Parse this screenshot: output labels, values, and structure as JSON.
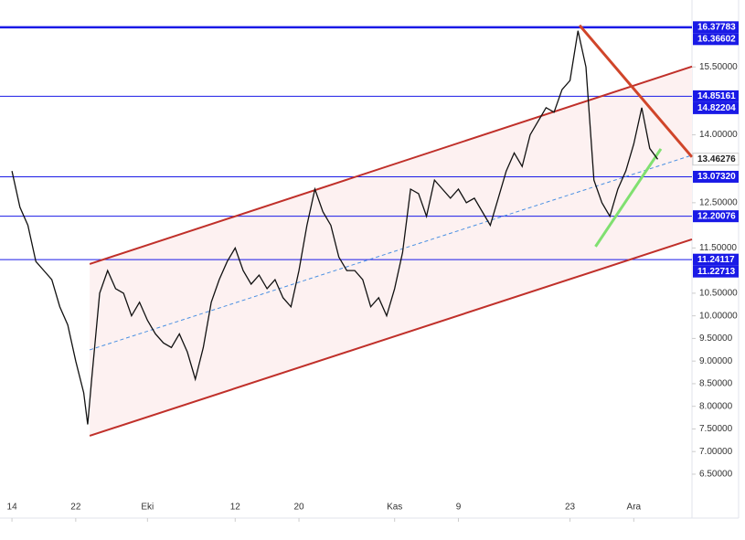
{
  "chart_data": {
    "type": "line",
    "x": [
      0,
      1,
      2,
      3,
      4,
      5,
      6,
      7,
      8,
      9,
      9.5,
      10,
      11,
      12,
      13,
      14,
      15,
      16,
      17,
      18,
      19,
      20,
      21,
      22,
      23,
      24,
      25,
      26,
      27,
      28,
      29,
      30,
      31,
      32,
      33,
      34,
      35,
      36,
      37,
      38,
      39,
      40,
      41,
      42,
      43,
      44,
      45,
      46,
      47,
      48,
      49,
      50,
      51,
      52,
      53,
      54,
      55,
      56,
      57,
      58,
      59,
      60,
      61,
      62,
      63,
      64,
      65,
      66,
      67,
      68,
      69,
      70,
      71,
      72,
      73,
      74,
      75,
      76,
      77,
      78,
      79,
      80,
      81
    ],
    "values": [
      13.2,
      12.4,
      12.0,
      11.2,
      11.0,
      10.8,
      10.2,
      9.8,
      9.0,
      8.3,
      7.6,
      8.6,
      10.5,
      11.0,
      10.6,
      10.5,
      10.0,
      10.3,
      9.9,
      9.6,
      9.4,
      9.3,
      9.6,
      9.2,
      8.6,
      9.3,
      10.3,
      10.8,
      11.2,
      11.5,
      11.0,
      10.7,
      10.9,
      10.6,
      10.8,
      10.4,
      10.2,
      11.0,
      12.0,
      12.8,
      12.3,
      12.0,
      11.3,
      11.0,
      11.0,
      10.8,
      10.2,
      10.4,
      10.0,
      10.6,
      11.4,
      12.8,
      12.7,
      12.2,
      13.0,
      12.8,
      12.6,
      12.8,
      12.5,
      12.6,
      12.3,
      12.0,
      12.6,
      13.2,
      13.6,
      13.3,
      14.0,
      14.3,
      14.6,
      14.5,
      15.0,
      15.2,
      16.3,
      15.5,
      13.0,
      12.5,
      12.2,
      12.8,
      13.2,
      13.8,
      14.6,
      13.7,
      13.46
    ],
    "color": "#111111",
    "xlim": [
      -1.5,
      85.3
    ],
    "xticks": [
      {
        "value": 0,
        "label": "14"
      },
      {
        "value": 8,
        "label": "22"
      },
      {
        "value": 17,
        "label": "Eki"
      },
      {
        "value": 28,
        "label": "12"
      },
      {
        "value": 36,
        "label": "20"
      },
      {
        "value": 48,
        "label": "Kas"
      },
      {
        "value": 56,
        "label": "9"
      },
      {
        "value": 70,
        "label": "23"
      },
      {
        "value": 78,
        "label": "Ara"
      }
    ],
    "ylim": [
      5.53,
      16.98
    ],
    "yticks": [
      {
        "value": 6.5,
        "label": "6.50000"
      },
      {
        "value": 7,
        "label": "7.00000"
      },
      {
        "value": 7.5,
        "label": "7.50000"
      },
      {
        "value": 8,
        "label": "8.00000"
      },
      {
        "value": 8.5,
        "label": "8.50000"
      },
      {
        "value": 9,
        "label": "9.00000"
      },
      {
        "value": 9.5,
        "label": "9.50000"
      },
      {
        "value": 10,
        "label": "10.00000"
      },
      {
        "value": 10.5,
        "label": "10.50000"
      },
      {
        "value": 11.5,
        "label": "11.50000"
      },
      {
        "value": 12.5,
        "label": "12.50000"
      },
      {
        "value": 14,
        "label": "14.00000"
      },
      {
        "value": 15.5,
        "label": "15.50000"
      }
    ],
    "hlines": [
      16.37783,
      14.85161,
      13.0732,
      12.20076,
      11.24117
    ],
    "hline_color": "#1a1ae6",
    "badges": [
      {
        "value": 16.37783,
        "label": "16.37783",
        "color": "#1a1ae6"
      },
      {
        "value": 16.36602,
        "label": "16.36602",
        "color": "#1a1ae6"
      },
      {
        "value": 14.85161,
        "label": "14.85161",
        "color": "#1a1ae6"
      },
      {
        "value": 14.82204,
        "label": "14.82204",
        "color": "#1a1ae6"
      },
      {
        "value": 13.46276,
        "label": "13.46276",
        "color": "#ffffff"
      },
      {
        "value": 13.0732,
        "label": "13.07320",
        "color": "#1a1ae6"
      },
      {
        "value": 12.20076,
        "label": "12.20076",
        "color": "#1a1ae6"
      },
      {
        "value": 11.24117,
        "label": "11.24117",
        "color": "#1a1ae6"
      },
      {
        "value": 11.22713,
        "label": "11.22713",
        "color": "#1a1ae6"
      }
    ],
    "lines": [
      {
        "x": [
          9.75,
          85.3
        ],
        "y": [
          11.146,
          15.51
        ],
        "color": "#c0302a",
        "width": 2
      },
      {
        "x": [
          9.75,
          85.3
        ],
        "y": [
          7.348,
          11.69
        ],
        "color": "#c0302a",
        "width": 2
      },
      {
        "x": [
          9.75,
          85.3
        ],
        "y": [
          9.247,
          13.55
        ],
        "color": "#4a90e2",
        "width": 1,
        "dash": true
      },
      {
        "x": [
          71.2,
          85.3
        ],
        "y": [
          16.42,
          13.51
        ],
        "color": "#d0452a",
        "width": 3
      },
      {
        "x": [
          73.2,
          81.4
        ],
        "y": [
          11.53,
          13.69
        ],
        "color": "#80e070",
        "width": 3
      }
    ],
    "channel_fill": "#fdf1f1"
  }
}
